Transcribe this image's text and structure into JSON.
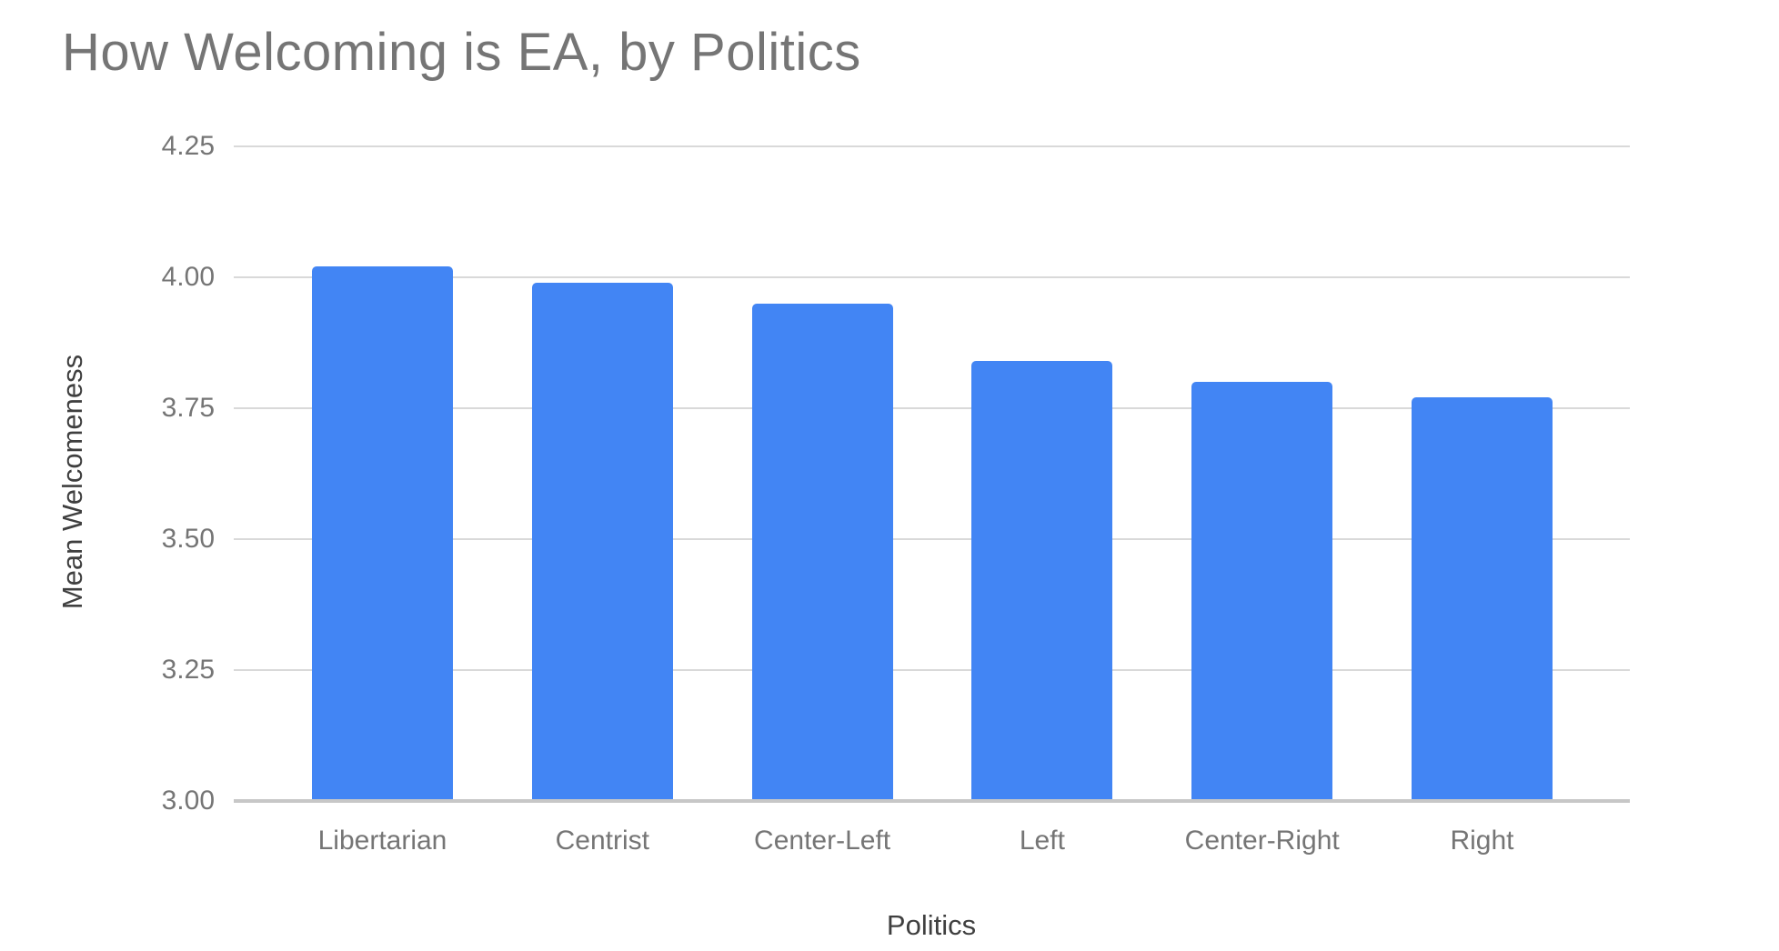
{
  "page": {
    "background": "#ffffff"
  },
  "chart_data": {
    "type": "bar",
    "title": "How Welcoming is EA, by Politics",
    "xlabel": "Politics",
    "ylabel": "Mean Welcomeness",
    "categories": [
      "Libertarian",
      "Centrist",
      "Center-Left",
      "Left",
      "Center-Right",
      "Right"
    ],
    "values": [
      4.02,
      3.99,
      3.95,
      3.84,
      3.8,
      3.77
    ],
    "ylim": [
      3.0,
      4.25
    ],
    "ytick_labels": [
      "4.25",
      "4.00",
      "3.75",
      "3.50",
      "3.25",
      "3.00"
    ],
    "grid": true,
    "legend": "none"
  },
  "colors": {
    "bar": "#4285f4",
    "gridline": "#d9d9d9",
    "baseline": "#c7c7c7",
    "title_text": "#757575",
    "tick_text": "#757575",
    "axis_title_text": "#3f3f3f",
    "background": "#ffffff"
  }
}
